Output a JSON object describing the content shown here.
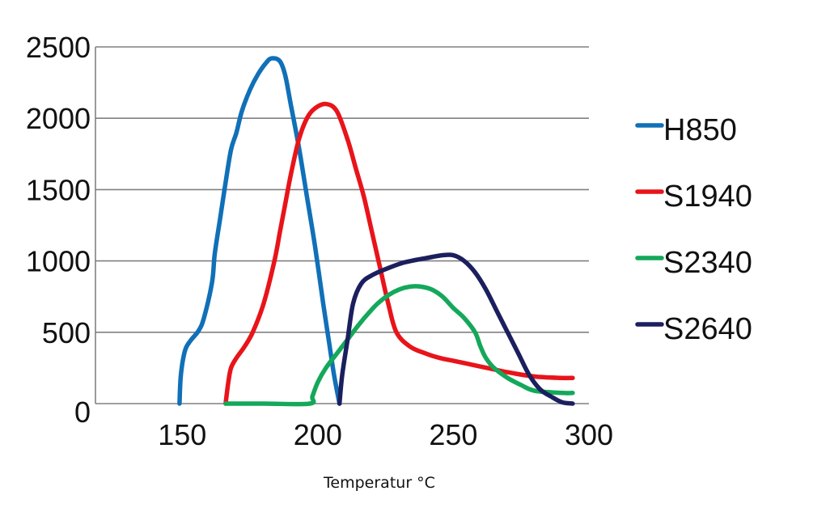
{
  "chart_data": {
    "type": "line",
    "title": "",
    "xlabel": "Temperatur °C",
    "ylabel": "",
    "xlim": [
      118,
      300
    ],
    "ylim": [
      0,
      2500
    ],
    "xticks": [
      150,
      200,
      250,
      300
    ],
    "yticks": [
      0,
      500,
      1000,
      1500,
      2000,
      2500
    ],
    "grid": true,
    "legend_position": "right",
    "series": [
      {
        "name": "H850",
        "color": "#1070b8",
        "x": [
          149,
          149.5,
          151,
          153,
          156,
          158,
          161,
          162,
          164,
          166,
          168,
          170,
          172,
          175,
          178,
          181,
          183,
          186,
          188,
          190,
          193,
          196,
          199,
          202,
          204,
          206,
          208
        ],
        "y": [
          0,
          200,
          370,
          440,
          510,
          600,
          850,
          1050,
          1300,
          1550,
          1780,
          1900,
          2050,
          2200,
          2310,
          2390,
          2420,
          2400,
          2300,
          2100,
          1800,
          1450,
          1100,
          700,
          450,
          200,
          0
        ]
      },
      {
        "name": "S1940",
        "color": "#e8141a",
        "x": [
          166,
          167,
          168,
          170,
          173,
          176,
          180,
          184,
          186,
          188,
          190,
          193,
          196,
          199,
          203,
          207,
          211,
          214,
          217,
          220,
          223,
          226,
          229,
          234,
          240,
          245,
          250,
          255,
          260,
          265,
          270,
          280,
          290,
          294
        ],
        "y": [
          0,
          150,
          250,
          320,
          400,
          500,
          700,
          1000,
          1200,
          1400,
          1600,
          1850,
          2000,
          2070,
          2100,
          2050,
          1850,
          1650,
          1450,
          1200,
          950,
          700,
          500,
          400,
          350,
          320,
          300,
          280,
          260,
          240,
          220,
          190,
          180,
          180
        ]
      },
      {
        "name": "S2340",
        "color": "#14a85a",
        "x": [
          166,
          180,
          197,
          198,
          200,
          203,
          207,
          211,
          215,
          219,
          222,
          226,
          230,
          234,
          238,
          242,
          246,
          250,
          254,
          258,
          260,
          262,
          265,
          270,
          275,
          280,
          290,
          294
        ],
        "y": [
          0,
          0,
          0,
          50,
          150,
          250,
          350,
          450,
          550,
          640,
          700,
          760,
          800,
          820,
          820,
          800,
          750,
          670,
          600,
          500,
          400,
          320,
          250,
          180,
          130,
          90,
          75,
          75
        ]
      },
      {
        "name": "S2640",
        "color": "#1c1f5e",
        "x": [
          208,
          209,
          211,
          213,
          216,
          220,
          226,
          232,
          240,
          246,
          250,
          254,
          258,
          262,
          266,
          270,
          274,
          278,
          282,
          286,
          290,
          294
        ],
        "y": [
          0,
          200,
          450,
          700,
          840,
          900,
          950,
          990,
          1020,
          1040,
          1040,
          1000,
          920,
          800,
          650,
          500,
          350,
          200,
          100,
          50,
          10,
          0
        ]
      }
    ]
  }
}
